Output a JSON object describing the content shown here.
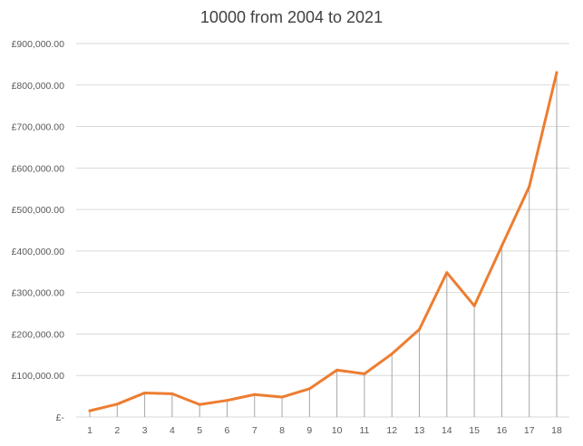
{
  "chart_data": {
    "type": "line",
    "title": "10000 from 2004 to 2021",
    "xlabel": "",
    "ylabel": "",
    "categories": [
      "1",
      "2",
      "3",
      "4",
      "5",
      "6",
      "7",
      "8",
      "9",
      "10",
      "11",
      "12",
      "13",
      "14",
      "15",
      "16",
      "17",
      "18"
    ],
    "series": [
      {
        "values": [
          15000,
          31000,
          58000,
          56000,
          30000,
          40000,
          54000,
          48000,
          68000,
          113000,
          104000,
          152000,
          211000,
          348000,
          268000,
          412000,
          555000,
          830000
        ],
        "color": "#ED7D31"
      }
    ],
    "ylim": [
      0,
      900000
    ],
    "yticks": [
      0,
      100000,
      200000,
      300000,
      400000,
      500000,
      600000,
      700000,
      800000,
      900000
    ],
    "ytick_labels": [
      "£-",
      "£100,000.00",
      "£200,000.00",
      "£300,000.00",
      "£400,000.00",
      "£500,000.00",
      "£600,000.00",
      "£700,000.00",
      "£800,000.00",
      "£900,000.00"
    ],
    "grid": true,
    "drop_lines": true,
    "gridline_color": "#D9D9D9",
    "drop_line_color": "#A6A6A6",
    "legend": "none"
  }
}
